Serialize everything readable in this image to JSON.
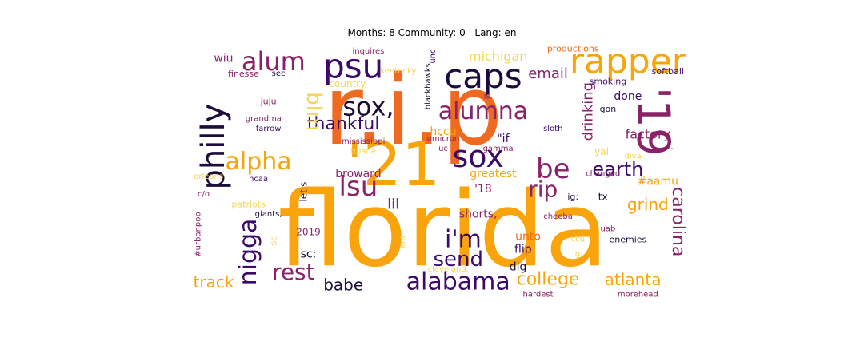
{
  "chart_data": {
    "type": "wordcloud",
    "title": "Months: 8 Community: 0 | Lang: en",
    "palette": [
      "#f9a40c",
      "#ef6a20",
      "#c13a4f",
      "#8a226a",
      "#3e0a6a",
      "#1c0c3b",
      "#f3d552"
    ],
    "words": [
      {
        "text": "florida",
        "size": 130,
        "x": 0.5,
        "y": 0.73,
        "rot": 0,
        "c": 0
      },
      {
        "text": "r.i.p",
        "size": 120,
        "x": 0.44,
        "y": 0.26,
        "rot": 0,
        "c": 1
      },
      {
        "text": "'21",
        "size": 76,
        "x": 0.4,
        "y": 0.47,
        "rot": 0,
        "c": 0
      },
      {
        "text": "'19",
        "size": 56,
        "x": 0.92,
        "y": 0.3,
        "rot": 90,
        "c": 3
      },
      {
        "text": "rapper",
        "size": 44,
        "x": 0.87,
        "y": 0.06,
        "rot": 0,
        "c": 0
      },
      {
        "text": "caps",
        "size": 42,
        "x": 0.58,
        "y": 0.12,
        "rot": 0,
        "c": 5
      },
      {
        "text": "psu",
        "size": 42,
        "x": 0.32,
        "y": 0.08,
        "rot": 0,
        "c": 4
      },
      {
        "text": "philly",
        "size": 40,
        "x": 0.04,
        "y": 0.4,
        "rot": -90,
        "c": 5
      },
      {
        "text": "sox",
        "size": 38,
        "x": 0.57,
        "y": 0.44,
        "rot": 0,
        "c": 4
      },
      {
        "text": "sox,",
        "size": 32,
        "x": 0.35,
        "y": 0.24,
        "rot": 0,
        "c": 5
      },
      {
        "text": "alumna",
        "size": 30,
        "x": 0.58,
        "y": 0.26,
        "rot": 0,
        "c": 3
      },
      {
        "text": "alum",
        "size": 32,
        "x": 0.16,
        "y": 0.06,
        "rot": 0,
        "c": 3
      },
      {
        "text": "alpha",
        "size": 30,
        "x": 0.13,
        "y": 0.46,
        "rot": 0,
        "c": 0
      },
      {
        "text": "lsu",
        "size": 34,
        "x": 0.33,
        "y": 0.56,
        "rot": 0,
        "c": 3
      },
      {
        "text": "be",
        "size": 34,
        "x": 0.72,
        "y": 0.49,
        "rot": 0,
        "c": 3
      },
      {
        "text": "rip",
        "size": 28,
        "x": 0.7,
        "y": 0.57,
        "rot": 0,
        "c": 3
      },
      {
        "text": "earth",
        "size": 24,
        "x": 0.85,
        "y": 0.49,
        "rot": 0,
        "c": 4
      },
      {
        "text": "thankful",
        "size": 22,
        "x": 0.3,
        "y": 0.31,
        "rot": 0,
        "c": 4
      },
      {
        "text": "blm",
        "size": 26,
        "x": 0.24,
        "y": 0.26,
        "rot": 90,
        "c": 6
      },
      {
        "text": "nigga",
        "size": 30,
        "x": 0.11,
        "y": 0.82,
        "rot": -90,
        "c": 4
      },
      {
        "text": "rest",
        "size": 28,
        "x": 0.2,
        "y": 0.9,
        "rot": 0,
        "c": 3
      },
      {
        "text": "i'm",
        "size": 30,
        "x": 0.54,
        "y": 0.77,
        "rot": 0,
        "c": 4
      },
      {
        "text": "send",
        "size": 26,
        "x": 0.53,
        "y": 0.85,
        "rot": 0,
        "c": 4
      },
      {
        "text": "alabama",
        "size": 30,
        "x": 0.53,
        "y": 0.94,
        "rot": 0,
        "c": 4
      },
      {
        "text": "college",
        "size": 22,
        "x": 0.71,
        "y": 0.93,
        "rot": 0,
        "c": 0
      },
      {
        "text": "atlanta",
        "size": 20,
        "x": 0.88,
        "y": 0.93,
        "rot": 0,
        "c": 0
      },
      {
        "text": "carolina",
        "size": 22,
        "x": 0.97,
        "y": 0.7,
        "rot": 90,
        "c": 3
      },
      {
        "text": "grind",
        "size": 20,
        "x": 0.91,
        "y": 0.63,
        "rot": 0,
        "c": 0
      },
      {
        "text": "drinking",
        "size": 18,
        "x": 0.79,
        "y": 0.26,
        "rot": -90,
        "c": 3
      },
      {
        "text": "factory",
        "size": 16,
        "x": 0.91,
        "y": 0.35,
        "rot": 0,
        "c": 3
      },
      {
        "text": "email",
        "size": 18,
        "x": 0.71,
        "y": 0.11,
        "rot": 0,
        "c": 3
      },
      {
        "text": "michigan",
        "size": 16,
        "x": 0.61,
        "y": 0.04,
        "rot": 0,
        "c": 6
      },
      {
        "text": "done",
        "size": 14,
        "x": 0.87,
        "y": 0.2,
        "rot": 0,
        "c": 4
      },
      {
        "text": "smoking",
        "size": 11,
        "x": 0.83,
        "y": 0.14,
        "rot": 0,
        "c": 4
      },
      {
        "text": "softball",
        "size": 11,
        "x": 0.95,
        "y": 0.1,
        "rot": 0,
        "c": 4
      },
      {
        "text": "gon",
        "size": 11,
        "x": 0.83,
        "y": 0.25,
        "rot": 0,
        "c": 5
      },
      {
        "text": "productions",
        "size": 11,
        "x": 0.76,
        "y": 0.01,
        "rot": 0,
        "c": 1
      },
      {
        "text": "track",
        "size": 20,
        "x": 0.04,
        "y": 0.94,
        "rot": 0,
        "c": 0
      },
      {
        "text": "babe",
        "size": 20,
        "x": 0.3,
        "y": 0.95,
        "rot": 0,
        "c": 5
      },
      {
        "text": "shorts,",
        "size": 14,
        "x": 0.57,
        "y": 0.67,
        "rot": 0,
        "c": 3
      },
      {
        "text": "unto",
        "size": 14,
        "x": 0.67,
        "y": 0.76,
        "rot": 0,
        "c": 1
      },
      {
        "text": "flip",
        "size": 14,
        "x": 0.66,
        "y": 0.81,
        "rot": 0,
        "c": 4
      },
      {
        "text": "dig",
        "size": 14,
        "x": 0.65,
        "y": 0.88,
        "rot": 0,
        "c": 5
      },
      {
        "text": "greatest",
        "size": 14,
        "x": 0.6,
        "y": 0.51,
        "rot": 0,
        "c": 0
      },
      {
        "text": "'18",
        "size": 14,
        "x": 0.58,
        "y": 0.57,
        "rot": 0,
        "c": 3
      },
      {
        "text": "\"if",
        "size": 14,
        "x": 0.62,
        "y": 0.37,
        "rot": 0,
        "c": 4
      },
      {
        "text": "hccu",
        "size": 14,
        "x": 0.5,
        "y": 0.34,
        "rot": 0,
        "c": 0
      },
      {
        "text": "broward",
        "size": 14,
        "x": 0.33,
        "y": 0.51,
        "rot": 0,
        "c": 3
      },
      {
        "text": "lil",
        "size": 18,
        "x": 0.4,
        "y": 0.63,
        "rot": 0,
        "c": 3
      },
      {
        "text": "2019",
        "size": 12,
        "x": 0.23,
        "y": 0.74,
        "rot": 0,
        "c": 3
      },
      {
        "text": "sc:",
        "size": 14,
        "x": 0.23,
        "y": 0.83,
        "rot": 0,
        "c": 5
      },
      {
        "text": "let's",
        "size": 12,
        "x": 0.22,
        "y": 0.58,
        "rot": -90,
        "c": 4
      },
      {
        "text": "sc-",
        "size": 11,
        "x": 0.16,
        "y": 0.77,
        "rot": -90,
        "c": 6
      },
      {
        "text": "ncaa",
        "size": 10,
        "x": 0.13,
        "y": 0.53,
        "rot": 0,
        "c": 4
      },
      {
        "text": "giants,",
        "size": 10,
        "x": 0.15,
        "y": 0.67,
        "rot": 0,
        "c": 5
      },
      {
        "text": "patriots",
        "size": 11,
        "x": 0.11,
        "y": 0.63,
        "rot": 0,
        "c": 6
      },
      {
        "text": "#urbanpop",
        "size": 10,
        "x": 0.01,
        "y": 0.75,
        "rot": -90,
        "c": 3
      },
      {
        "text": "c/o",
        "size": 10,
        "x": 0.02,
        "y": 0.59,
        "rot": 0,
        "c": 3
      },
      {
        "text": "orleans",
        "size": 10,
        "x": 0.03,
        "y": 0.52,
        "rot": 0,
        "c": 6
      },
      {
        "text": "wiu",
        "size": 14,
        "x": 0.06,
        "y": 0.05,
        "rot": 0,
        "c": 3
      },
      {
        "text": "finesse",
        "size": 11,
        "x": 0.1,
        "y": 0.11,
        "rot": 0,
        "c": 3
      },
      {
        "text": "sec",
        "size": 10,
        "x": 0.17,
        "y": 0.11,
        "rot": 0,
        "c": 5
      },
      {
        "text": "juju",
        "size": 11,
        "x": 0.15,
        "y": 0.22,
        "rot": 0,
        "c": 3
      },
      {
        "text": "grandma",
        "size": 10,
        "x": 0.14,
        "y": 0.29,
        "rot": 0,
        "c": 3
      },
      {
        "text": "farrow",
        "size": 10,
        "x": 0.15,
        "y": 0.33,
        "rot": 0,
        "c": 4
      },
      {
        "text": "country.",
        "size": 12,
        "x": 0.31,
        "y": 0.15,
        "rot": 0,
        "c": 6
      },
      {
        "text": "inquires",
        "size": 10,
        "x": 0.35,
        "y": 0.02,
        "rot": 0,
        "c": 3
      },
      {
        "text": "kentucky",
        "size": 10,
        "x": 0.41,
        "y": 0.1,
        "rot": 0,
        "c": 6
      },
      {
        "text": "unc",
        "size": 10,
        "x": 0.48,
        "y": 0.04,
        "rot": -90,
        "c": 4
      },
      {
        "text": "blackhawks",
        "size": 10,
        "x": 0.47,
        "y": 0.16,
        "rot": -90,
        "c": 5
      },
      {
        "text": "is.",
        "size": 10,
        "x": 0.59,
        "y": 0.2,
        "rot": 0,
        "c": 3
      },
      {
        "text": "mississippi",
        "size": 10,
        "x": 0.34,
        "y": 0.38,
        "rot": 0,
        "c": 3
      },
      {
        "text": "tulane",
        "size": 10,
        "x": 0.34,
        "y": 0.42,
        "rot": 0,
        "c": 6
      },
      {
        "text": "omicron",
        "size": 10,
        "x": 0.5,
        "y": 0.37,
        "rot": 0,
        "c": 3
      },
      {
        "text": "uc",
        "size": 10,
        "x": 0.5,
        "y": 0.41,
        "rot": 0,
        "c": 3
      },
      {
        "text": "gamma",
        "size": 10,
        "x": 0.61,
        "y": 0.41,
        "rot": 0,
        "c": 3
      },
      {
        "text": "sloth",
        "size": 10,
        "x": 0.72,
        "y": 0.33,
        "rot": 0,
        "c": 4
      },
      {
        "text": "yall",
        "size": 12,
        "x": 0.82,
        "y": 0.42,
        "rot": 0,
        "c": 6
      },
      {
        "text": "diva",
        "size": 10,
        "x": 0.88,
        "y": 0.44,
        "rot": 0,
        "c": 6
      },
      {
        "text": "----",
        "size": 10,
        "x": 0.95,
        "y": 0.41,
        "rot": 0,
        "c": 4
      },
      {
        "text": "changed",
        "size": 10,
        "x": 0.82,
        "y": 0.51,
        "rot": 0,
        "c": 3
      },
      {
        "text": "#aamu",
        "size": 14,
        "x": 0.93,
        "y": 0.54,
        "rot": 0,
        "c": 0
      },
      {
        "text": "ig:",
        "size": 11,
        "x": 0.76,
        "y": 0.6,
        "rot": 0,
        "c": 5
      },
      {
        "text": "tx",
        "size": 12,
        "x": 0.82,
        "y": 0.6,
        "rot": 0,
        "c": 5
      },
      {
        "text": "cheeba",
        "size": 10,
        "x": 0.73,
        "y": 0.68,
        "rot": 0,
        "c": 3
      },
      {
        "text": "uab",
        "size": 10,
        "x": 0.83,
        "y": 0.73,
        "rot": 0,
        "c": 3
      },
      {
        "text": "enemies",
        "size": 11,
        "x": 0.87,
        "y": 0.77,
        "rot": 0,
        "c": 5
      },
      {
        "text": "ccu",
        "size": 10,
        "x": 0.77,
        "y": 0.77,
        "rot": 0,
        "c": 6
      },
      {
        "text": "ig-",
        "size": 10,
        "x": 0.77,
        "y": 0.83,
        "rot": 0,
        "c": 6
      },
      {
        "text": "ent",
        "size": 10,
        "x": 0.42,
        "y": 0.78,
        "rot": -90,
        "c": 6
      },
      {
        "text": "cleveland.",
        "size": 10,
        "x": 0.51,
        "y": 0.89,
        "rot": 0,
        "c": 6
      },
      {
        "text": "hardest",
        "size": 10,
        "x": 0.69,
        "y": 0.99,
        "rot": 0,
        "c": 3
      },
      {
        "text": "morehead",
        "size": 10,
        "x": 0.89,
        "y": 0.99,
        "rot": 0,
        "c": 3
      }
    ]
  }
}
